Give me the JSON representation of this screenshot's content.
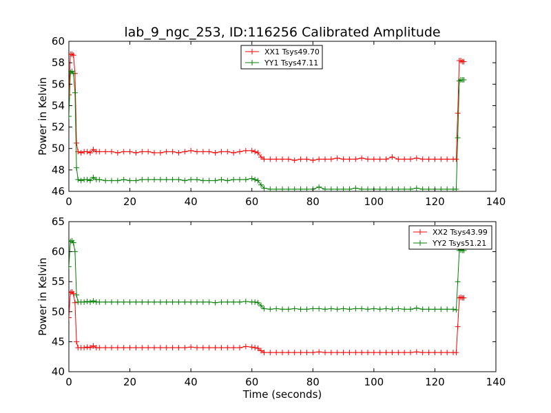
{
  "figure": {
    "title": "lab_9_ngc_253, ID:116256 Calibrated Amplitude"
  },
  "chart_data": [
    {
      "type": "line",
      "title": "lab_9_ngc_253, ID:116256 Calibrated Amplitude",
      "xlabel": "",
      "ylabel": "Power in Kelvin",
      "xlim": [
        0,
        140
      ],
      "ylim": [
        46,
        60
      ],
      "x_ticks": [
        0,
        20,
        40,
        60,
        80,
        100,
        120,
        140
      ],
      "y_ticks": [
        46,
        48,
        50,
        52,
        54,
        56,
        58,
        60
      ],
      "grid": false,
      "legend_position": "top-center",
      "series": [
        {
          "name": "XX1 Tsys49.70",
          "color": "#ff0000",
          "marker": "+",
          "x": [
            0,
            0.5,
            1,
            1.5,
            2,
            2.5,
            3,
            4,
            5,
            6,
            7,
            8,
            9,
            10,
            12,
            14,
            16,
            18,
            20,
            22,
            24,
            26,
            28,
            30,
            32,
            34,
            36,
            38,
            40,
            42,
            44,
            46,
            48,
            50,
            52,
            54,
            56,
            58,
            60,
            61,
            62,
            63,
            64,
            66,
            68,
            70,
            72,
            74,
            76,
            78,
            80,
            82,
            84,
            86,
            88,
            90,
            92,
            94,
            96,
            98,
            100,
            102,
            104,
            106,
            108,
            110,
            112,
            114,
            116,
            118,
            120,
            122,
            124,
            126,
            127,
            127.5,
            128,
            128.5,
            129,
            129.5
          ],
          "y": [
            55.0,
            58.8,
            58.8,
            58.7,
            57.0,
            50.5,
            49.7,
            49.6,
            49.7,
            49.7,
            49.6,
            49.9,
            49.7,
            49.7,
            49.7,
            49.7,
            49.6,
            49.7,
            49.7,
            49.6,
            49.7,
            49.7,
            49.6,
            49.6,
            49.7,
            49.7,
            49.6,
            49.7,
            49.8,
            49.7,
            49.7,
            49.7,
            49.6,
            49.7,
            49.7,
            49.6,
            49.7,
            49.8,
            49.8,
            49.7,
            49.6,
            49.2,
            49.0,
            49.0,
            49.0,
            49.0,
            49.0,
            48.9,
            49.0,
            49.0,
            48.9,
            49.0,
            49.0,
            49.0,
            49.1,
            49.0,
            49.0,
            49.0,
            49.1,
            49.0,
            49.0,
            49.0,
            49.0,
            49.2,
            49.0,
            49.0,
            49.0,
            49.1,
            49.0,
            49.0,
            49.0,
            49.0,
            49.0,
            49.0,
            49.0,
            53.3,
            58.2,
            58.2,
            58.1,
            58.1
          ]
        },
        {
          "name": "YY1 Tsys47.11",
          "color": "#008000",
          "marker": "+",
          "x": [
            0,
            0.5,
            1,
            1.5,
            2,
            2.5,
            3,
            4,
            5,
            6,
            7,
            8,
            9,
            10,
            12,
            14,
            16,
            18,
            20,
            22,
            24,
            26,
            28,
            30,
            32,
            34,
            36,
            38,
            40,
            42,
            44,
            46,
            48,
            50,
            52,
            54,
            56,
            58,
            60,
            61,
            62,
            63,
            64,
            66,
            68,
            70,
            72,
            74,
            76,
            78,
            80,
            82,
            84,
            86,
            88,
            90,
            92,
            94,
            96,
            98,
            100,
            102,
            104,
            106,
            108,
            110,
            112,
            114,
            116,
            118,
            120,
            122,
            124,
            126,
            127,
            127.5,
            128,
            128.5,
            129,
            129.5
          ],
          "y": [
            53.0,
            57.1,
            57.2,
            57.0,
            55.2,
            48.2,
            47.1,
            47.0,
            47.1,
            47.1,
            47.0,
            47.3,
            47.1,
            47.1,
            47.0,
            47.0,
            47.0,
            47.1,
            47.0,
            47.0,
            47.1,
            47.1,
            47.1,
            47.1,
            47.1,
            47.1,
            47.1,
            47.0,
            47.1,
            47.1,
            47.0,
            47.0,
            47.0,
            47.1,
            47.0,
            47.1,
            47.1,
            47.1,
            47.2,
            47.1,
            47.0,
            46.6,
            46.3,
            46.2,
            46.2,
            46.2,
            46.2,
            46.2,
            46.2,
            46.2,
            46.2,
            46.4,
            46.2,
            46.2,
            46.2,
            46.2,
            46.2,
            46.3,
            46.2,
            46.2,
            46.2,
            46.2,
            46.2,
            46.2,
            46.2,
            46.2,
            46.2,
            46.3,
            46.2,
            46.2,
            46.2,
            46.2,
            46.2,
            46.2,
            46.2,
            51.0,
            56.3,
            56.4,
            56.4,
            56.4
          ]
        }
      ]
    },
    {
      "type": "line",
      "title": "",
      "xlabel": "Time (seconds)",
      "ylabel": "Power in Kelvin",
      "xlim": [
        0,
        140
      ],
      "ylim": [
        40,
        65
      ],
      "x_ticks": [
        0,
        20,
        40,
        60,
        80,
        100,
        120,
        140
      ],
      "y_ticks": [
        40,
        45,
        50,
        55,
        60,
        65
      ],
      "grid": false,
      "legend_position": "top-right",
      "series": [
        {
          "name": "XX2 Tsys43.99",
          "color": "#ff0000",
          "marker": "+",
          "x": [
            0,
            0.5,
            1,
            1.5,
            2,
            2.5,
            3,
            4,
            5,
            6,
            7,
            8,
            9,
            10,
            12,
            14,
            16,
            18,
            20,
            22,
            24,
            26,
            28,
            30,
            32,
            34,
            36,
            38,
            40,
            42,
            44,
            46,
            48,
            50,
            52,
            54,
            56,
            58,
            60,
            61,
            62,
            63,
            64,
            66,
            68,
            70,
            72,
            74,
            76,
            78,
            80,
            82,
            84,
            86,
            88,
            90,
            92,
            94,
            96,
            98,
            100,
            102,
            104,
            106,
            108,
            110,
            112,
            114,
            116,
            118,
            120,
            122,
            124,
            126,
            127,
            127.5,
            128,
            128.5,
            129,
            129.5
          ],
          "y": [
            49.0,
            53.2,
            53.3,
            53.0,
            51.5,
            45.0,
            44.0,
            44.0,
            44.0,
            44.1,
            44.0,
            44.3,
            44.0,
            44.0,
            44.0,
            44.0,
            44.0,
            44.0,
            44.0,
            44.0,
            44.0,
            44.0,
            44.0,
            44.0,
            44.0,
            44.0,
            44.0,
            44.0,
            44.1,
            44.0,
            44.0,
            44.0,
            44.0,
            44.0,
            44.0,
            44.0,
            44.0,
            44.2,
            44.1,
            44.0,
            43.9,
            43.5,
            43.2,
            43.2,
            43.2,
            43.2,
            43.2,
            43.2,
            43.2,
            43.2,
            43.2,
            43.3,
            43.2,
            43.2,
            43.2,
            43.2,
            43.2,
            43.2,
            43.2,
            43.2,
            43.2,
            43.2,
            43.2,
            43.2,
            43.2,
            43.2,
            43.2,
            43.3,
            43.2,
            43.2,
            43.2,
            43.2,
            43.2,
            43.2,
            43.2,
            47.5,
            52.3,
            52.4,
            52.3,
            52.3
          ]
        },
        {
          "name": "YY2 Tsys51.21",
          "color": "#008000",
          "marker": "+",
          "x": [
            0,
            0.5,
            1,
            1.5,
            2,
            2.5,
            3,
            4,
            5,
            6,
            7,
            8,
            9,
            10,
            12,
            14,
            16,
            18,
            20,
            22,
            24,
            26,
            28,
            30,
            32,
            34,
            36,
            38,
            40,
            42,
            44,
            46,
            48,
            50,
            52,
            54,
            56,
            58,
            60,
            61,
            62,
            63,
            64,
            66,
            68,
            70,
            72,
            74,
            76,
            78,
            80,
            82,
            84,
            86,
            88,
            90,
            92,
            94,
            96,
            98,
            100,
            102,
            104,
            106,
            108,
            110,
            112,
            114,
            116,
            118,
            120,
            122,
            124,
            126,
            127,
            127.5,
            128,
            128.5,
            129,
            129.5
          ],
          "y": [
            57.5,
            61.7,
            61.8,
            61.5,
            60.0,
            52.8,
            51.6,
            51.6,
            51.6,
            51.7,
            51.6,
            51.8,
            51.6,
            51.6,
            51.6,
            51.6,
            51.6,
            51.6,
            51.6,
            51.6,
            51.6,
            51.6,
            51.6,
            51.6,
            51.6,
            51.6,
            51.6,
            51.6,
            51.6,
            51.6,
            51.6,
            51.6,
            51.5,
            51.6,
            51.6,
            51.6,
            51.6,
            51.7,
            51.6,
            51.6,
            51.5,
            51.0,
            50.5,
            50.4,
            50.5,
            50.4,
            50.4,
            50.5,
            50.4,
            50.4,
            50.5,
            50.5,
            50.4,
            50.5,
            50.4,
            50.5,
            50.4,
            50.5,
            50.5,
            50.4,
            50.5,
            50.4,
            50.5,
            50.4,
            50.5,
            50.4,
            50.4,
            50.6,
            50.4,
            50.4,
            50.4,
            50.4,
            50.4,
            50.4,
            50.3,
            55.0,
            60.2,
            60.3,
            60.2,
            60.2
          ]
        }
      ]
    }
  ]
}
